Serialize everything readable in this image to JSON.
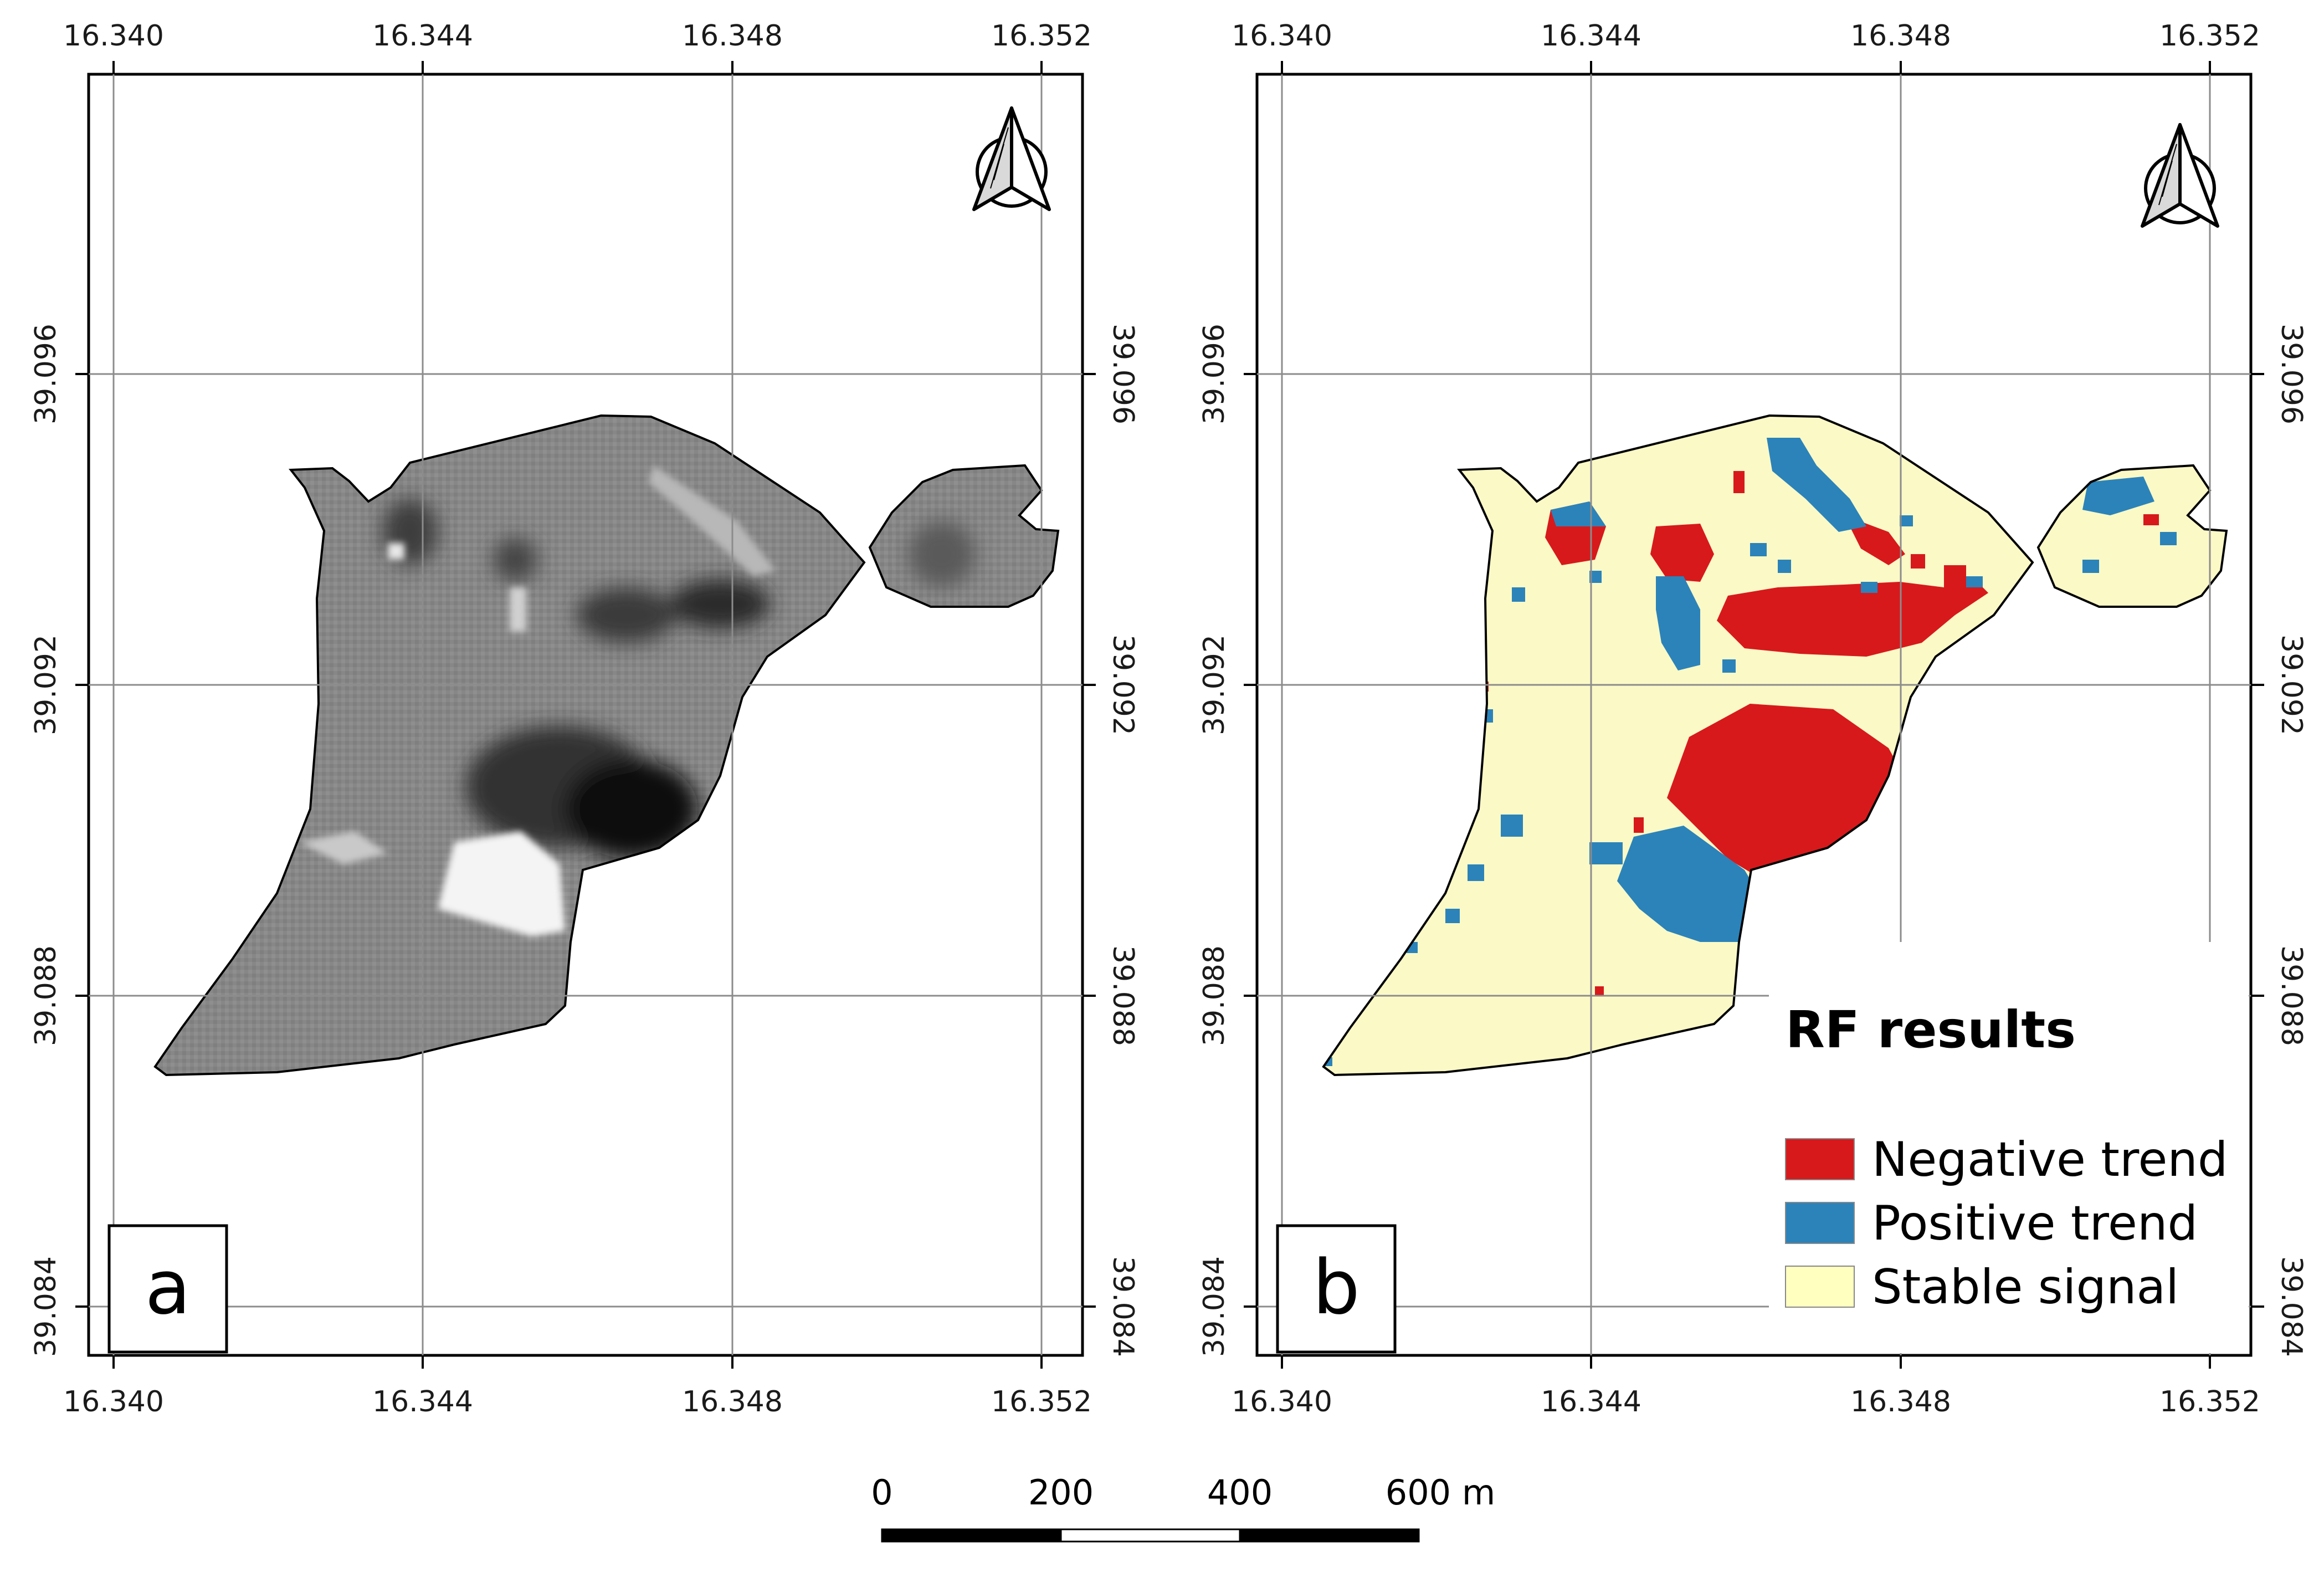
{
  "panels": [
    {
      "id": "a",
      "letter": "a",
      "style": "grayscale"
    },
    {
      "id": "b",
      "letter": "b",
      "style": "classified"
    }
  ],
  "axes": {
    "x_ticks": [
      "16.340",
      "16.344",
      "16.348",
      "16.352"
    ],
    "y_ticks": [
      "39.096",
      "39.092",
      "39.088",
      "39.084"
    ]
  },
  "legend": {
    "title": "RF results",
    "items": [
      {
        "label": "Negative trend",
        "color": "#d7191c"
      },
      {
        "label": "Positive trend",
        "color": "#2b83ba"
      },
      {
        "label": "Stable signal",
        "color": "#ffffc0"
      }
    ]
  },
  "scale_bar": {
    "labels": [
      "0",
      "200",
      "400",
      "600 m"
    ]
  },
  "colors": {
    "frame": "#000000",
    "grid": "#8c8c8c",
    "stable": "#fbf9c6",
    "negative": "#d7191c",
    "positive": "#2b83ba",
    "gray_base": "#8a8a8a"
  },
  "north_arrow": {
    "icon": "north-arrow-icon"
  }
}
